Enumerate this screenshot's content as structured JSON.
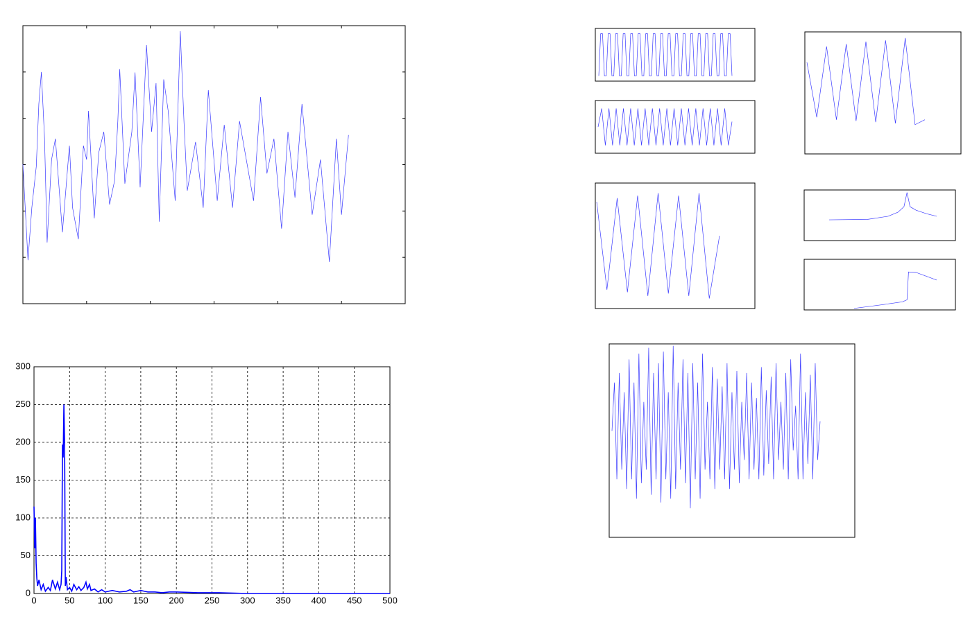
{
  "chart_data": [
    {
      "type": "line",
      "color": "#3b3bff",
      "xlim": [
        0,
        6
      ],
      "ylim": [
        0,
        6
      ],
      "xticks": [
        1,
        2,
        3,
        4,
        5
      ],
      "yticks": [
        1,
        2,
        3,
        4,
        5
      ],
      "grid": false,
      "x": [
        0,
        0.08,
        0.14,
        0.21,
        0.25,
        0.29,
        0.34,
        0.38,
        0.45,
        0.51,
        0.62,
        0.73,
        0.78,
        0.87,
        0.95,
        1.0,
        1.03,
        1.12,
        1.19,
        1.27,
        1.36,
        1.44,
        1.49,
        1.52,
        1.6,
        1.71,
        1.76,
        1.84,
        1.94,
        2.02,
        2.09,
        2.14,
        2.21,
        2.28,
        2.39,
        2.47,
        2.53,
        2.58,
        2.71,
        2.83,
        2.91,
        3.05,
        3.16,
        3.29,
        3.4,
        3.62,
        3.73,
        3.83,
        3.94,
        4.06,
        4.16,
        4.27,
        4.38,
        4.54,
        4.67,
        4.81,
        4.92,
        5.0,
        5.11
      ],
      "values": [
        3.01,
        0.94,
        2.07,
        2.96,
        4.31,
        5.0,
        3.56,
        1.32,
        3.11,
        3.56,
        1.54,
        3.41,
        2.07,
        1.39,
        3.41,
        3.11,
        4.16,
        1.84,
        3.26,
        3.71,
        2.14,
        2.66,
        3.94,
        5.06,
        2.59,
        3.71,
        4.99,
        2.51,
        5.58,
        3.71,
        4.76,
        1.77,
        4.84,
        4.16,
        2.22,
        5.88,
        3.86,
        2.44,
        3.49,
        2.07,
        4.61,
        2.22,
        3.86,
        2.07,
        3.94,
        2.22,
        4.46,
        2.81,
        3.56,
        1.62,
        3.71,
        2.29,
        4.31,
        1.92,
        3.11,
        0.9,
        3.56,
        1.92,
        3.64
      ]
    },
    {
      "type": "line",
      "color": "#0000ff",
      "xlim": [
        0,
        500
      ],
      "ylim": [
        0,
        300
      ],
      "xticks": [
        0,
        50,
        100,
        150,
        200,
        250,
        300,
        350,
        400,
        450,
        500
      ],
      "yticks": [
        0,
        50,
        100,
        150,
        200,
        250,
        300
      ],
      "grid": true,
      "x": [
        0,
        1,
        2,
        3,
        4,
        5,
        7,
        10,
        13,
        16,
        20,
        23,
        26,
        30,
        33,
        36,
        38,
        39,
        40,
        41,
        42,
        43,
        44,
        45,
        47,
        50,
        53,
        56,
        60,
        63,
        66,
        70,
        73,
        75,
        78,
        80,
        85,
        90,
        95,
        100,
        110,
        120,
        130,
        135,
        140,
        150,
        155,
        160,
        170,
        180,
        190,
        200,
        230,
        260,
        300,
        350,
        400,
        450,
        500
      ],
      "values": [
        115,
        60,
        100,
        40,
        20,
        10,
        18,
        5,
        12,
        3,
        8,
        4,
        18,
        6,
        15,
        5,
        12,
        30,
        197,
        180,
        250,
        197,
        10,
        22,
        5,
        8,
        3,
        12,
        5,
        9,
        4,
        8,
        15,
        6,
        12,
        4,
        6,
        2,
        5,
        2,
        4,
        2,
        3,
        5,
        2,
        4,
        3,
        2,
        2,
        1,
        2,
        2,
        1,
        1,
        0,
        0,
        0,
        0,
        0
      ]
    },
    {
      "type": "line",
      "color": "#3b3bff",
      "ylim": [
        0,
        1
      ],
      "values": [
        0.1,
        0.9,
        0.9,
        0.1,
        0.1,
        0.9,
        0.9,
        0.1,
        0.1,
        0.9,
        0.9,
        0.1,
        0.1,
        0.9,
        0.9,
        0.1,
        0.1,
        0.9,
        0.9,
        0.1,
        0.1,
        0.9,
        0.9,
        0.1,
        0.1,
        0.9,
        0.9,
        0.1,
        0.1,
        0.9,
        0.9,
        0.1,
        0.1,
        0.9,
        0.9,
        0.1,
        0.1,
        0.9,
        0.9,
        0.1,
        0.1,
        0.9,
        0.9,
        0.1,
        0.1,
        0.9,
        0.9,
        0.1,
        0.1,
        0.9,
        0.9,
        0.1,
        0.1,
        0.9,
        0.9,
        0.1,
        0.1,
        0.9,
        0.9,
        0.1,
        0.1,
        0.9,
        0.9,
        0.1,
        0.1,
        0.9,
        0.9,
        0.1,
        0.1,
        0.9,
        0.9,
        0.1
      ]
    },
    {
      "type": "line",
      "color": "#3b3bff",
      "ylim": [
        0,
        1
      ],
      "values": [
        0.5,
        0.85,
        0.15,
        0.85,
        0.15,
        0.85,
        0.15,
        0.85,
        0.15,
        0.85,
        0.15,
        0.85,
        0.15,
        0.85,
        0.15,
        0.85,
        0.15,
        0.85,
        0.15,
        0.85,
        0.15,
        0.85,
        0.15,
        0.85,
        0.15,
        0.85,
        0.15,
        0.85,
        0.15,
        0.85,
        0.15,
        0.85,
        0.15,
        0.85,
        0.15,
        0.85,
        0.15,
        0.6
      ]
    },
    {
      "type": "line",
      "color": "#3b3bff",
      "ylim": [
        0,
        1
      ],
      "values": [
        0.75,
        0.3,
        0.88,
        0.28,
        0.9,
        0.27,
        0.92,
        0.26,
        0.93,
        0.25,
        0.95,
        0.24,
        0.28
      ]
    },
    {
      "type": "line",
      "color": "#3b3bff",
      "ylim": [
        0,
        1
      ],
      "values": [
        0.85,
        0.15,
        0.88,
        0.13,
        0.9,
        0.1,
        0.92,
        0.12,
        0.9,
        0.1,
        0.92,
        0.08,
        0.58
      ]
    },
    {
      "type": "line",
      "color": "#3b3bff",
      "xlim": [
        0,
        1
      ],
      "ylim": [
        0,
        1
      ],
      "x": [
        0.165,
        0.42,
        0.555,
        0.62,
        0.66,
        0.68,
        0.7,
        0.74,
        0.81,
        0.876
      ],
      "values": [
        0.41,
        0.42,
        0.48,
        0.56,
        0.67,
        0.95,
        0.67,
        0.6,
        0.53,
        0.48
      ]
    },
    {
      "type": "line",
      "color": "#3b3bff",
      "xlim": [
        0,
        1
      ],
      "ylim": [
        0,
        1
      ],
      "x": [
        0.33,
        0.51,
        0.65,
        0.68,
        0.69,
        0.74,
        0.876
      ],
      "values": [
        0.03,
        0.1,
        0.16,
        0.2,
        0.75,
        0.74,
        0.59
      ]
    },
    {
      "type": "line",
      "color": "#3b3bff",
      "ylim": [
        0,
        1
      ],
      "values": [
        0.55,
        0.8,
        0.3,
        0.85,
        0.35,
        0.75,
        0.25,
        0.92,
        0.3,
        0.8,
        0.2,
        0.95,
        0.28,
        0.7,
        0.35,
        0.98,
        0.22,
        0.85,
        0.3,
        0.9,
        0.18,
        0.96,
        0.3,
        0.75,
        0.2,
        0.99,
        0.25,
        0.8,
        0.35,
        0.92,
        0.28,
        0.85,
        0.15,
        0.9,
        0.3,
        0.8,
        0.2,
        0.95,
        0.35,
        0.7,
        0.3,
        0.88,
        0.25,
        0.82,
        0.35,
        0.78,
        0.3,
        0.9,
        0.25,
        0.75,
        0.35,
        0.86,
        0.28,
        0.7,
        0.4,
        0.85,
        0.3,
        0.8,
        0.35,
        0.72,
        0.3,
        0.88,
        0.32,
        0.76,
        0.38,
        0.83,
        0.3,
        0.9,
        0.4,
        0.7,
        0.35,
        0.85,
        0.3,
        0.92,
        0.45,
        0.68,
        0.3,
        0.95,
        0.3,
        0.75,
        0.38,
        0.84,
        0.3,
        0.9,
        0.4,
        0.6
      ]
    }
  ]
}
